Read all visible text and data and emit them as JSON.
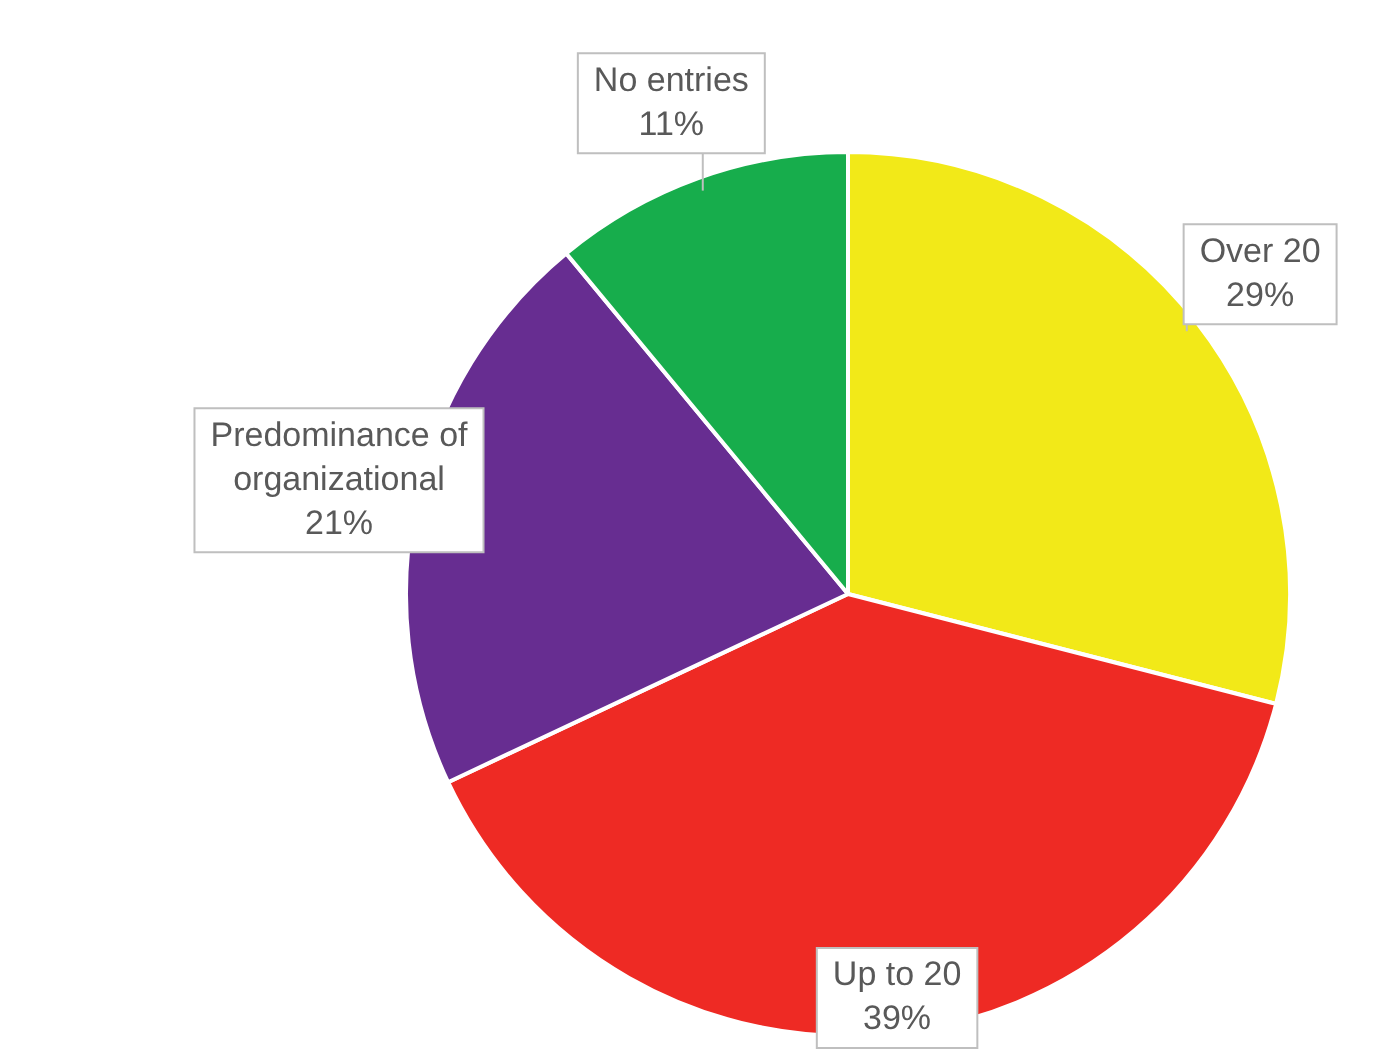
{
  "chart_data": {
    "type": "pie",
    "categories": [
      "Over 20",
      "Up to 20",
      "Predominance of organizational",
      "No entries"
    ],
    "values": [
      29,
      39,
      21,
      11
    ],
    "value_labels": [
      "29%",
      "39%",
      "21%",
      "11%"
    ],
    "colors": [
      "#f2e918",
      "#ee2a24",
      "#672d91",
      "#17ad4c"
    ],
    "legend": false
  }
}
